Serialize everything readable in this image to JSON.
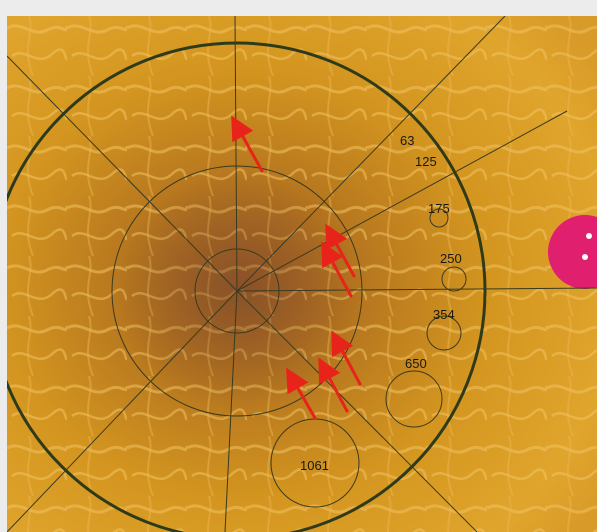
{
  "image": {
    "subject": "fundus-retina-grading-grid",
    "arrow_color": "#e8241a",
    "optic_disc_color": "#e0206e"
  },
  "grid_labels": [
    {
      "id": "label-63",
      "text": "63"
    },
    {
      "id": "label-125",
      "text": "125"
    },
    {
      "id": "label-175",
      "text": "175"
    },
    {
      "id": "label-250",
      "text": "250"
    },
    {
      "id": "label-354",
      "text": "354"
    },
    {
      "id": "label-650",
      "text": "650"
    },
    {
      "id": "label-1061",
      "text": "1061"
    }
  ]
}
